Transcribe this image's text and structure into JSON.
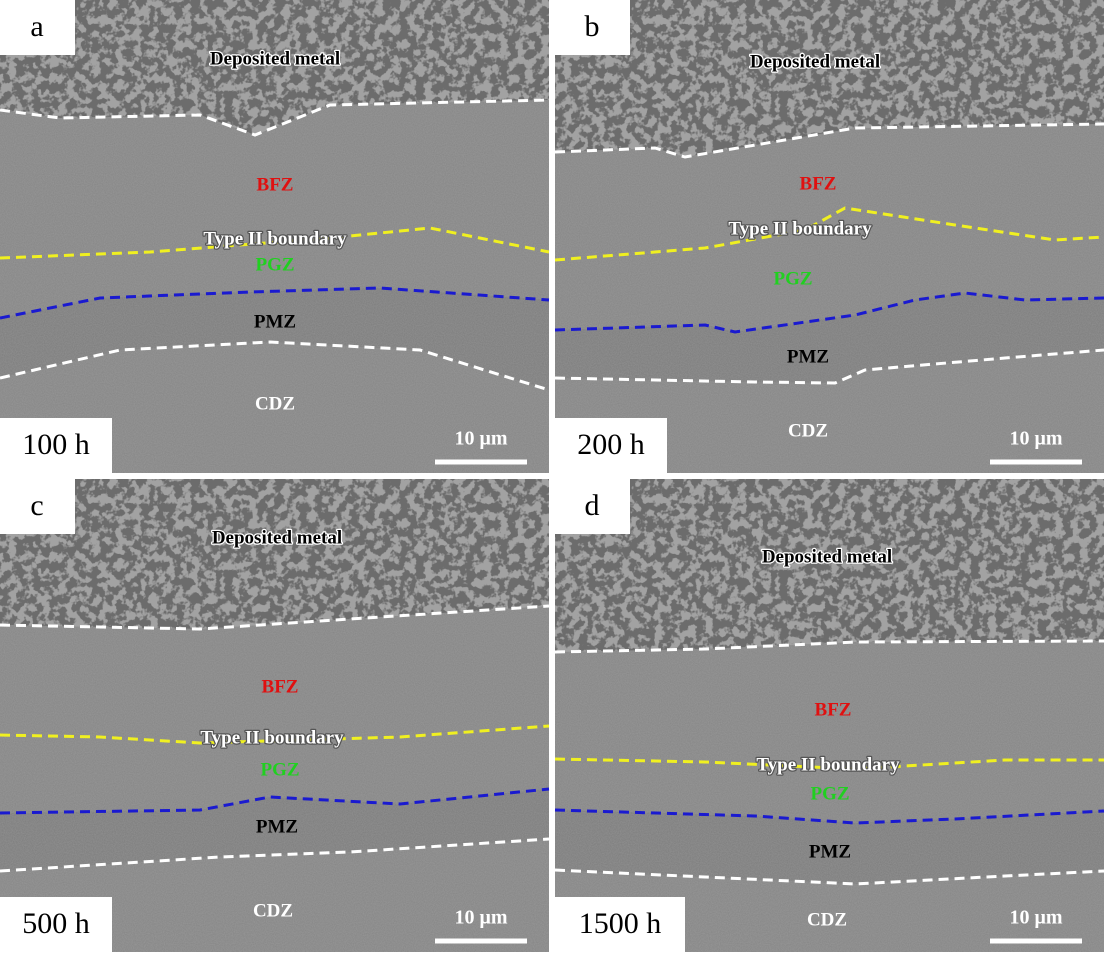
{
  "panels": [
    {
      "letter": "a",
      "time": "100 h",
      "scale_bar": "10 μm",
      "labels": {
        "deposited": "Deposited metal",
        "bfz": "BFZ",
        "boundary": "Type II boundary",
        "pgz": "PGZ",
        "pmz": "PMZ",
        "cdz": "CDZ"
      }
    },
    {
      "letter": "b",
      "time": "200 h",
      "scale_bar": "10 μm",
      "labels": {
        "deposited": "Deposited metal",
        "bfz": "BFZ",
        "boundary": "Type II boundary",
        "pgz": "PGZ",
        "pmz": "PMZ",
        "cdz": "CDZ"
      }
    },
    {
      "letter": "c",
      "time": "500 h",
      "scale_bar": "10 μm",
      "labels": {
        "deposited": "Deposited metal",
        "bfz": "BFZ",
        "boundary": "Type II boundary",
        "pgz": "PGZ",
        "pmz": "PMZ",
        "cdz": "CDZ"
      }
    },
    {
      "letter": "d",
      "time": "1500 h",
      "scale_bar": "10 μm",
      "labels": {
        "deposited": "Deposited metal",
        "bfz": "BFZ",
        "boundary": "Type II boundary",
        "pgz": "PGZ",
        "pmz": "PMZ",
        "cdz": "CDZ"
      }
    }
  ]
}
